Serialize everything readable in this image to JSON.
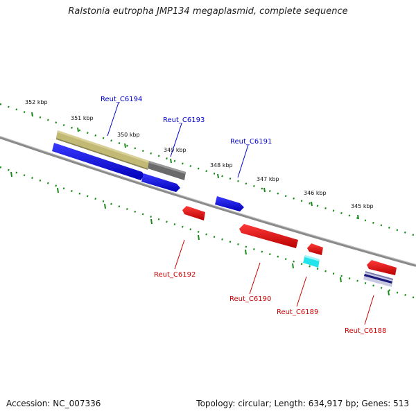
{
  "title": "Ralstonia eutropha JMP134 megaplasmid, complete sequence",
  "footer": {
    "accession": "Accession: NC_007336",
    "summary": "Topology: circular; Length: 634,917 bp; Genes: 513"
  },
  "ticks": [
    "352 kbp",
    "351 kbp",
    "350 kbp",
    "349 kbp",
    "348 kbp",
    "347 kbp",
    "346 kbp",
    "345 kbp"
  ],
  "genes": {
    "Reut_C6194": {
      "label": "Reut_C6194",
      "color": "#0000cc"
    },
    "Reut_C6193": {
      "label": "Reut_C6193",
      "color": "#0000cc"
    },
    "Reut_C6191": {
      "label": "Reut_C6191",
      "color": "#0000cc"
    },
    "Reut_C6192": {
      "label": "Reut_C6192",
      "color": "#cc0000"
    },
    "Reut_C6190": {
      "label": "Reut_C6190",
      "color": "#cc0000"
    },
    "Reut_C6189": {
      "label": "Reut_C6189",
      "color": "#cc0000"
    },
    "Reut_C6188": {
      "label": "Reut_C6188",
      "color": "#cc0000"
    }
  },
  "colors": {
    "forward_gene": "#0a0ae0",
    "reverse_gene": "#e00000",
    "backbone": "#808080",
    "tick": "#1a8a1a",
    "olive_feature": "#c0b870",
    "gray_feature": "#6a6a6a",
    "cyan_feature": "#20e0e8",
    "navy_feature": "#1a1a8a"
  }
}
